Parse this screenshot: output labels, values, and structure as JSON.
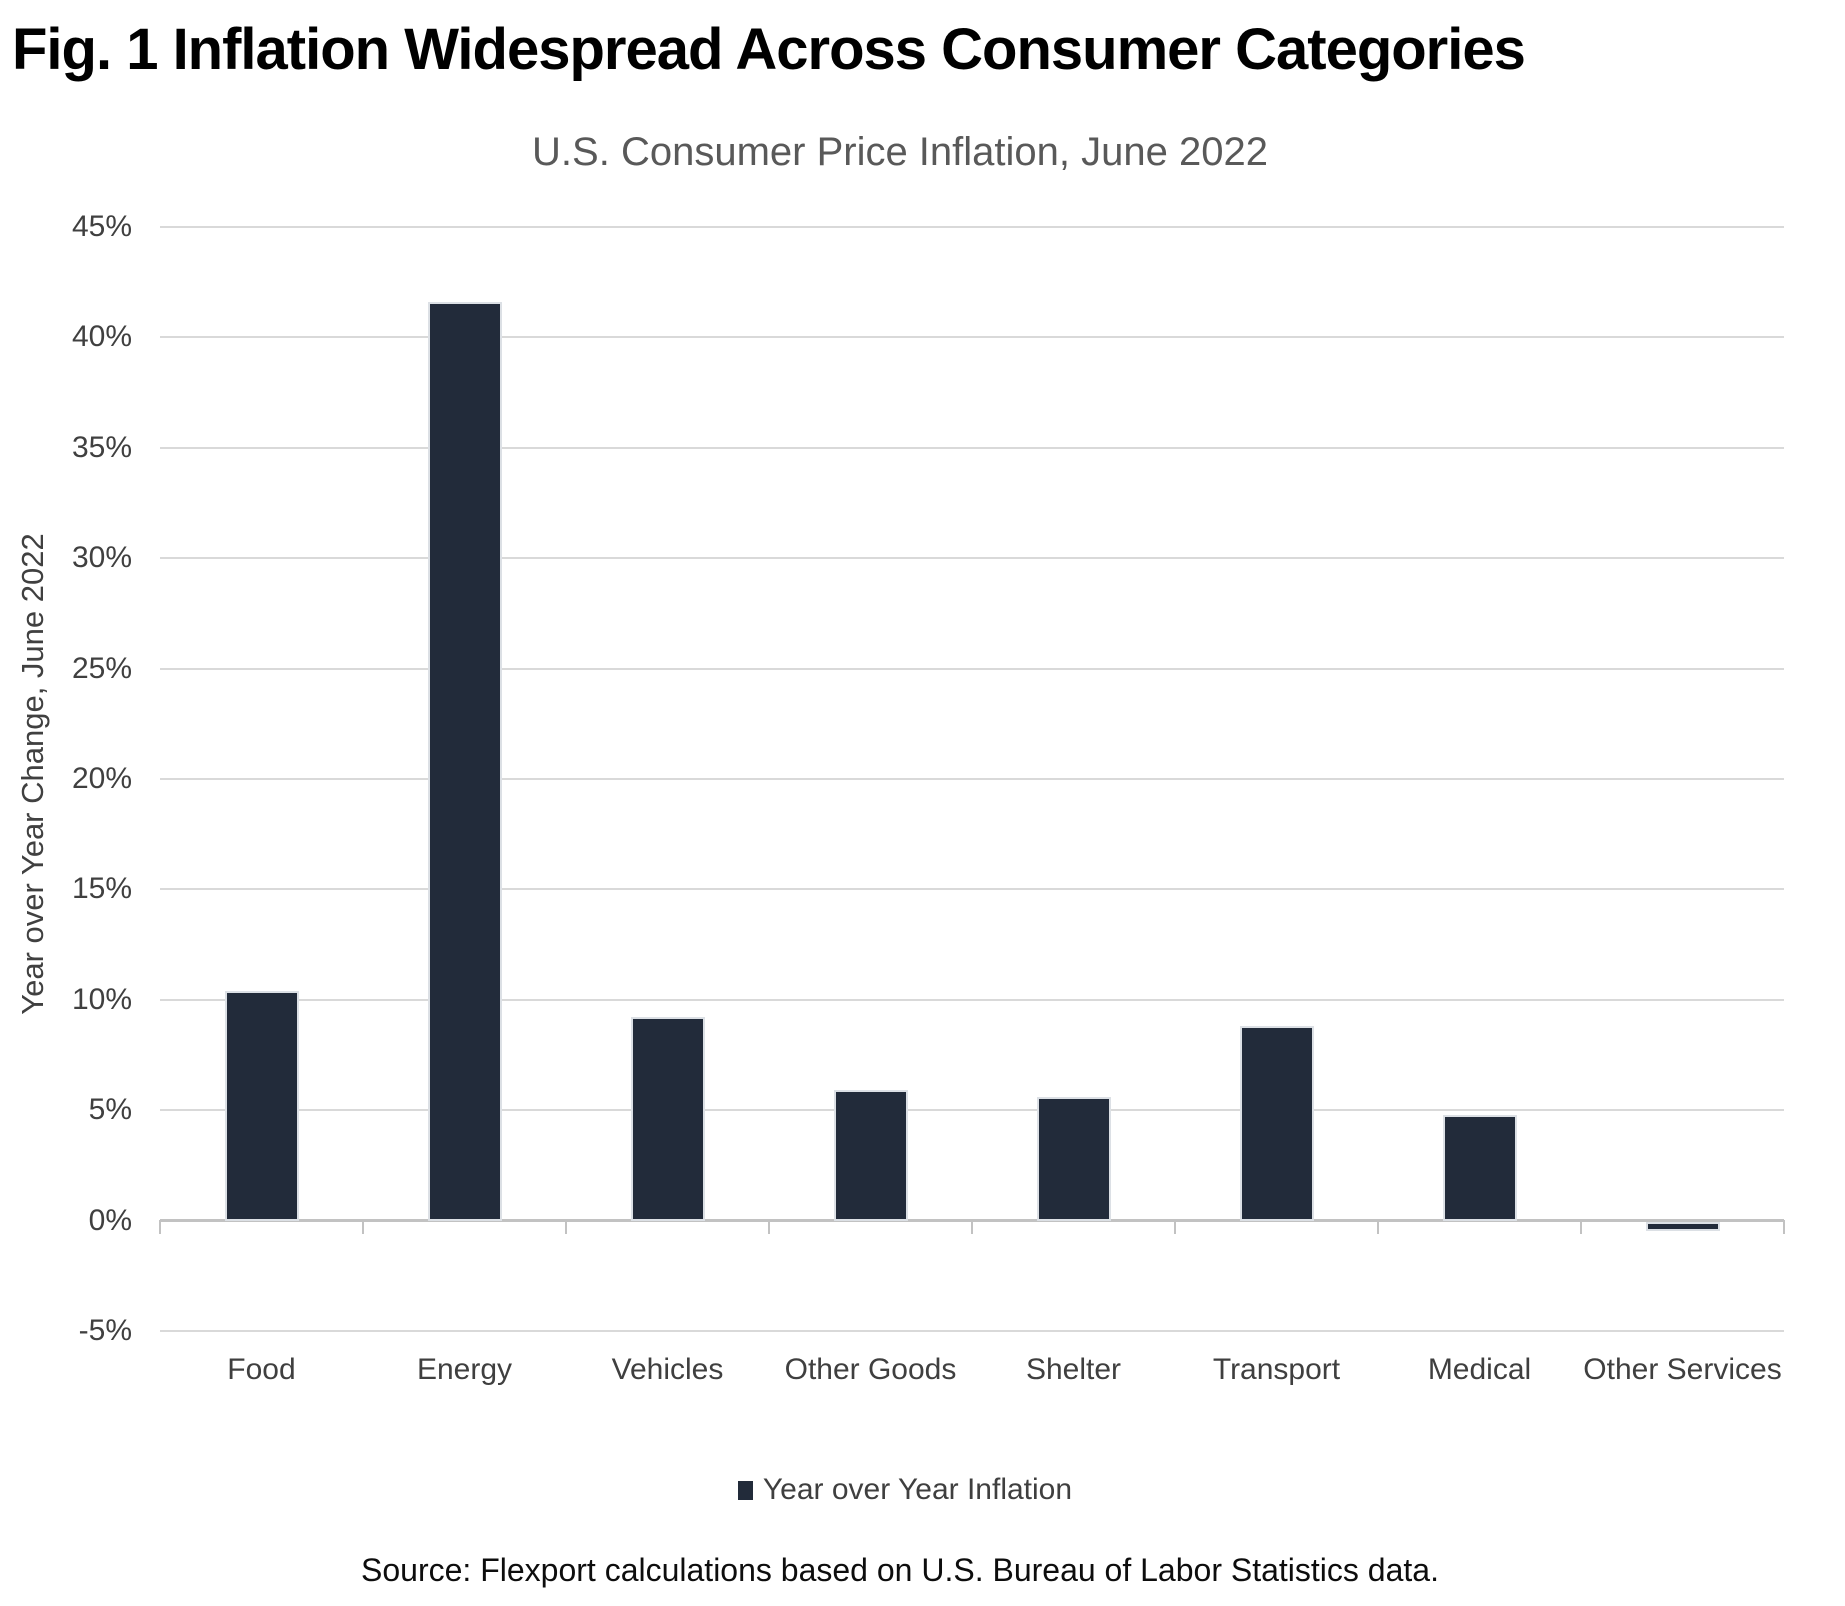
{
  "title": "Fig. 1 Inflation Widespread Across Consumer Categories",
  "subtitle": "U.S. Consumer Price Inflation, June 2022",
  "y_axis_title": "Year over Year Change, June 2022",
  "legend": {
    "label": "Year over Year Inflation",
    "marker_color": "#222B3A"
  },
  "source": "Source: Flexport calculations based on U.S. Bureau of Labor Statistics data.",
  "colors": {
    "bar_fill": "#222B3A",
    "bar_border": "#DCE0E5",
    "gridline": "#D9D9D9",
    "zero_axis": "#C2C2C2",
    "tick_label": "#404040",
    "category_label": "#3F3F3F",
    "subtitle_text": "#595959",
    "title_text": "#000000",
    "source_text": "#0D0D0D",
    "background": "#FFFFFF"
  },
  "chart_data": {
    "type": "bar",
    "title": "U.S. Consumer Price Inflation, June 2022",
    "xlabel": "",
    "ylabel": "Year over Year Change, June 2022",
    "categories": [
      "Food",
      "Energy",
      "Vehicles",
      "Other Goods",
      "Shelter",
      "Transport",
      "Medical",
      "Other Services"
    ],
    "values": [
      10.4,
      41.6,
      9.2,
      5.9,
      5.6,
      8.8,
      4.8,
      -0.4
    ],
    "series_name": "Year over Year Inflation",
    "ylim": [
      -5,
      45
    ],
    "ytick_values": [
      45,
      40,
      35,
      30,
      25,
      20,
      15,
      10,
      5,
      0,
      -5
    ],
    "ytick_labels": [
      "45%",
      "40%",
      "35%",
      "30%",
      "25%",
      "20%",
      "15%",
      "10%",
      "5%",
      "0%",
      "-5%"
    ],
    "grid": true,
    "legend_position": "bottom"
  }
}
